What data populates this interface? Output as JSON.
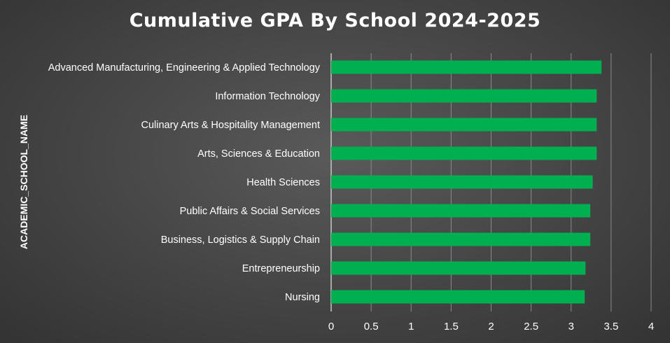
{
  "chart_data": {
    "type": "bar",
    "orientation": "horizontal",
    "title": "Cumulative GPA By School 2024-2025",
    "ylabel": "ACADEMIC_SCHOOL_NAME",
    "xlabel": "",
    "categories": [
      "Advanced Manufacturing, Engineering & Applied Technology",
      "Information Technology",
      "Culinary Arts & Hospitality Management",
      "Arts, Sciences & Education",
      "Health Sciences",
      "Public Affairs & Social Services",
      "Business, Logistics & Supply Chain",
      "Entrepreneurship",
      "Nursing"
    ],
    "values": [
      3.38,
      3.32,
      3.32,
      3.32,
      3.27,
      3.24,
      3.24,
      3.18,
      3.17
    ],
    "xlim": [
      0,
      4
    ],
    "xticks": [
      "0",
      "0.5",
      "1",
      "1.5",
      "2",
      "2.5",
      "3",
      "3.5",
      "4"
    ],
    "grid": "vertical",
    "legend": "none",
    "colors": {
      "bar": "#00b050",
      "text": "#ffffff",
      "grid": "#8a8a8a"
    }
  }
}
